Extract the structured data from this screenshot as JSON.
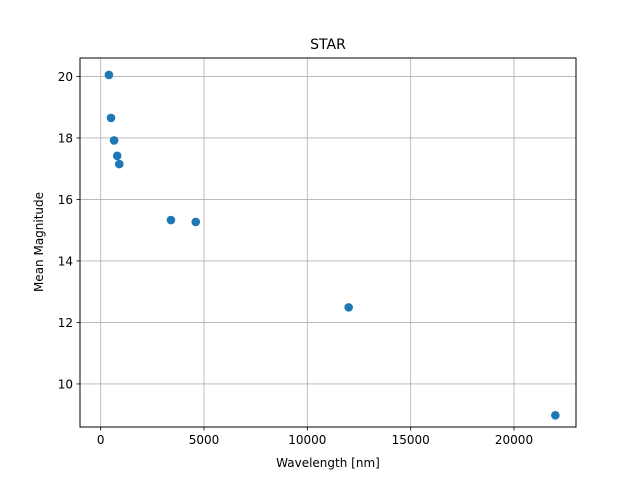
{
  "chart_data": {
    "type": "scatter",
    "title": "STAR",
    "xlabel": "Wavelength [nm]",
    "ylabel": "Mean Magnitude",
    "xlim": [
      -1000,
      23000
    ],
    "ylim": [
      8.6,
      20.6
    ],
    "xticks": [
      0,
      5000,
      10000,
      15000,
      20000
    ],
    "yticks": [
      10,
      12,
      14,
      16,
      18,
      20
    ],
    "grid": true,
    "marker_color": "#1f77b4",
    "points": [
      {
        "x": 400,
        "y": 20.05
      },
      {
        "x": 500,
        "y": 18.65
      },
      {
        "x": 650,
        "y": 17.92
      },
      {
        "x": 800,
        "y": 17.42
      },
      {
        "x": 900,
        "y": 17.15
      },
      {
        "x": 3400,
        "y": 15.33
      },
      {
        "x": 4600,
        "y": 15.27
      },
      {
        "x": 12000,
        "y": 12.49
      },
      {
        "x": 22000,
        "y": 8.98
      }
    ]
  }
}
